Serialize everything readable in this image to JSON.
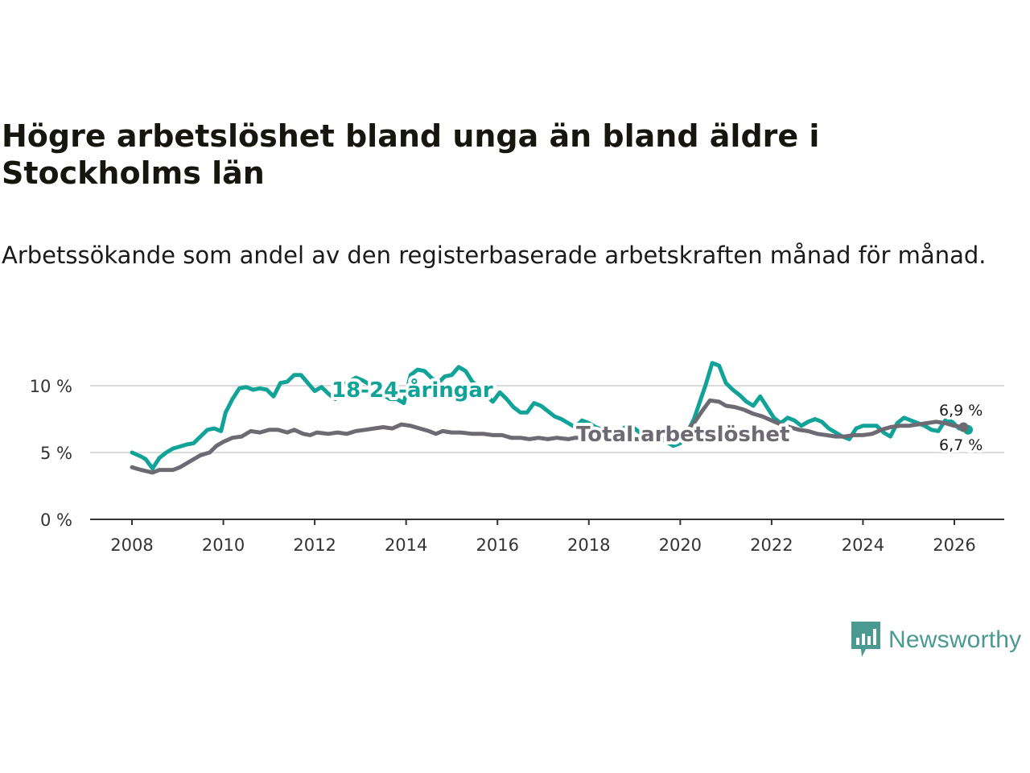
{
  "title": "Högre arbetslöshet bland unga än bland äldre i Stockholms län",
  "subtitle": "Arbetssökande som andel av den registerbaserade arbetskraften månad för månad.",
  "brand": {
    "name": "Newsworthy",
    "color": "#4a9a91",
    "icon": "bar-chart-speech-bubble-icon"
  },
  "chart_data": {
    "type": "line",
    "title": "Högre arbetslöshet bland unga än bland äldre i Stockholms län",
    "subtitle": "Arbetssökande som andel av den registerbaserade arbetskraften månad för månad.",
    "xlabel": "",
    "ylabel": "",
    "xlim": [
      2007.7,
      2027.1
    ],
    "ylim": [
      0,
      12
    ],
    "x_ticks": [
      2008,
      2010,
      2012,
      2014,
      2016,
      2018,
      2020,
      2022,
      2024,
      2026
    ],
    "x_tick_labels": [
      "2008",
      "2010",
      "2012",
      "2014",
      "2016",
      "2018",
      "2020",
      "2022",
      "2024",
      "2026"
    ],
    "y_ticks": [
      0,
      5,
      10
    ],
    "y_tick_labels": [
      "0 %",
      "5 %",
      "10 %"
    ],
    "grid": true,
    "series": [
      {
        "name": "18-24-åringar",
        "label": "18-24-åringar",
        "color": "#12a398",
        "end_label": "6,7 %",
        "points": [
          [
            2008.0,
            5.0
          ],
          [
            2008.2,
            4.7
          ],
          [
            2008.3,
            4.5
          ],
          [
            2008.45,
            3.8
          ],
          [
            2008.6,
            4.6
          ],
          [
            2008.75,
            5.0
          ],
          [
            2008.9,
            5.3
          ],
          [
            2009.0,
            5.4
          ],
          [
            2009.2,
            5.6
          ],
          [
            2009.35,
            5.7
          ],
          [
            2009.5,
            6.2
          ],
          [
            2009.65,
            6.7
          ],
          [
            2009.8,
            6.8
          ],
          [
            2009.95,
            6.6
          ],
          [
            2010.05,
            8.0
          ],
          [
            2010.2,
            9.0
          ],
          [
            2010.35,
            9.8
          ],
          [
            2010.5,
            9.9
          ],
          [
            2010.65,
            9.7
          ],
          [
            2010.8,
            9.8
          ],
          [
            2010.95,
            9.7
          ],
          [
            2011.1,
            9.2
          ],
          [
            2011.25,
            10.2
          ],
          [
            2011.4,
            10.3
          ],
          [
            2011.55,
            10.8
          ],
          [
            2011.7,
            10.8
          ],
          [
            2011.85,
            10.2
          ],
          [
            2012.0,
            9.6
          ],
          [
            2012.15,
            9.9
          ],
          [
            2012.3,
            9.4
          ],
          [
            2012.45,
            9.0
          ],
          [
            2012.6,
            10.0
          ],
          [
            2012.75,
            10.3
          ],
          [
            2012.9,
            10.6
          ],
          [
            2013.05,
            10.4
          ],
          [
            2013.2,
            10.1
          ],
          [
            2013.35,
            9.8
          ],
          [
            2013.5,
            9.3
          ],
          [
            2013.65,
            9.0
          ],
          [
            2013.8,
            9.0
          ],
          [
            2013.95,
            8.7
          ],
          [
            2014.1,
            10.8
          ],
          [
            2014.25,
            11.2
          ],
          [
            2014.4,
            11.1
          ],
          [
            2014.55,
            10.6
          ],
          [
            2014.7,
            10.2
          ],
          [
            2014.85,
            10.7
          ],
          [
            2015.0,
            10.8
          ],
          [
            2015.15,
            11.4
          ],
          [
            2015.3,
            11.1
          ],
          [
            2015.45,
            10.3
          ],
          [
            2015.6,
            9.9
          ],
          [
            2015.75,
            9.3
          ],
          [
            2015.9,
            8.8
          ],
          [
            2016.05,
            9.5
          ],
          [
            2016.2,
            9.0
          ],
          [
            2016.35,
            8.4
          ],
          [
            2016.5,
            8.0
          ],
          [
            2016.65,
            8.0
          ],
          [
            2016.8,
            8.7
          ],
          [
            2016.95,
            8.5
          ],
          [
            2017.1,
            8.1
          ],
          [
            2017.25,
            7.7
          ],
          [
            2017.4,
            7.5
          ],
          [
            2017.55,
            7.2
          ],
          [
            2017.7,
            6.9
          ],
          [
            2017.85,
            7.4
          ],
          [
            2018.0,
            7.2
          ],
          [
            2018.15,
            6.9
          ],
          [
            2018.3,
            6.7
          ],
          [
            2018.45,
            6.7
          ],
          [
            2018.55,
            6.4
          ],
          [
            2018.7,
            6.7
          ],
          [
            2018.85,
            7.0
          ],
          [
            2019.0,
            6.8
          ],
          [
            2019.15,
            6.4
          ],
          [
            2019.3,
            6.6
          ],
          [
            2019.45,
            6.3
          ],
          [
            2019.6,
            6.0
          ],
          [
            2019.7,
            5.8
          ],
          [
            2019.85,
            5.5
          ],
          [
            2020.0,
            5.7
          ],
          [
            2020.15,
            6.5
          ],
          [
            2020.3,
            7.5
          ],
          [
            2020.45,
            9.0
          ],
          [
            2020.55,
            10.0
          ],
          [
            2020.7,
            11.7
          ],
          [
            2020.85,
            11.5
          ],
          [
            2021.0,
            10.2
          ],
          [
            2021.15,
            9.7
          ],
          [
            2021.3,
            9.3
          ],
          [
            2021.45,
            8.8
          ],
          [
            2021.6,
            8.5
          ],
          [
            2021.75,
            9.2
          ],
          [
            2021.9,
            8.4
          ],
          [
            2022.05,
            7.6
          ],
          [
            2022.2,
            7.2
          ],
          [
            2022.35,
            7.6
          ],
          [
            2022.5,
            7.4
          ],
          [
            2022.65,
            7.0
          ],
          [
            2022.8,
            7.3
          ],
          [
            2022.95,
            7.5
          ],
          [
            2023.1,
            7.3
          ],
          [
            2023.25,
            6.8
          ],
          [
            2023.4,
            6.5
          ],
          [
            2023.55,
            6.2
          ],
          [
            2023.7,
            6.0
          ],
          [
            2023.85,
            6.8
          ],
          [
            2024.0,
            7.0
          ],
          [
            2024.15,
            7.0
          ],
          [
            2024.3,
            7.0
          ],
          [
            2024.45,
            6.5
          ],
          [
            2024.6,
            6.2
          ],
          [
            2024.75,
            7.2
          ],
          [
            2024.9,
            7.6
          ],
          [
            2025.05,
            7.4
          ],
          [
            2025.2,
            7.2
          ],
          [
            2025.35,
            7.0
          ],
          [
            2025.5,
            6.7
          ],
          [
            2025.65,
            6.6
          ],
          [
            2025.8,
            7.4
          ],
          [
            2025.95,
            7.3
          ],
          [
            2026.1,
            6.8
          ],
          [
            2026.2,
            6.8
          ],
          [
            2026.3,
            6.7
          ]
        ]
      },
      {
        "name": "Total arbetslöshet",
        "label": "Total arbetslöshet",
        "color": "#6e6a73",
        "end_label": "6,9 %",
        "points": [
          [
            2008.0,
            3.9
          ],
          [
            2008.2,
            3.7
          ],
          [
            2008.45,
            3.5
          ],
          [
            2008.6,
            3.7
          ],
          [
            2008.9,
            3.7
          ],
          [
            2009.05,
            3.9
          ],
          [
            2009.3,
            4.4
          ],
          [
            2009.5,
            4.8
          ],
          [
            2009.7,
            5.0
          ],
          [
            2009.85,
            5.5
          ],
          [
            2010.0,
            5.8
          ],
          [
            2010.2,
            6.1
          ],
          [
            2010.4,
            6.2
          ],
          [
            2010.6,
            6.6
          ],
          [
            2010.8,
            6.5
          ],
          [
            2011.0,
            6.7
          ],
          [
            2011.2,
            6.7
          ],
          [
            2011.4,
            6.5
          ],
          [
            2011.55,
            6.7
          ],
          [
            2011.75,
            6.4
          ],
          [
            2011.9,
            6.3
          ],
          [
            2012.05,
            6.5
          ],
          [
            2012.3,
            6.4
          ],
          [
            2012.5,
            6.5
          ],
          [
            2012.7,
            6.4
          ],
          [
            2012.9,
            6.6
          ],
          [
            2013.1,
            6.7
          ],
          [
            2013.3,
            6.8
          ],
          [
            2013.5,
            6.9
          ],
          [
            2013.7,
            6.8
          ],
          [
            2013.9,
            7.1
          ],
          [
            2014.1,
            7.0
          ],
          [
            2014.3,
            6.8
          ],
          [
            2014.5,
            6.6
          ],
          [
            2014.65,
            6.4
          ],
          [
            2014.8,
            6.6
          ],
          [
            2015.0,
            6.5
          ],
          [
            2015.2,
            6.5
          ],
          [
            2015.45,
            6.4
          ],
          [
            2015.7,
            6.4
          ],
          [
            2015.9,
            6.3
          ],
          [
            2016.1,
            6.3
          ],
          [
            2016.3,
            6.1
          ],
          [
            2016.5,
            6.1
          ],
          [
            2016.7,
            6.0
          ],
          [
            2016.9,
            6.1
          ],
          [
            2017.1,
            6.0
          ],
          [
            2017.3,
            6.1
          ],
          [
            2017.55,
            6.0
          ],
          [
            2017.7,
            6.1
          ],
          [
            2017.9,
            6.1
          ],
          [
            2018.1,
            6.2
          ],
          [
            2018.3,
            6.1
          ],
          [
            2018.5,
            6.0
          ],
          [
            2018.7,
            6.1
          ],
          [
            2018.9,
            6.0
          ],
          [
            2019.1,
            6.0
          ],
          [
            2019.3,
            6.0
          ],
          [
            2019.5,
            5.9
          ],
          [
            2019.7,
            6.1
          ],
          [
            2019.9,
            6.3
          ],
          [
            2020.1,
            6.5
          ],
          [
            2020.3,
            7.2
          ],
          [
            2020.5,
            8.2
          ],
          [
            2020.65,
            8.9
          ],
          [
            2020.85,
            8.8
          ],
          [
            2021.0,
            8.5
          ],
          [
            2021.2,
            8.4
          ],
          [
            2021.4,
            8.2
          ],
          [
            2021.6,
            7.9
          ],
          [
            2021.8,
            7.7
          ],
          [
            2022.0,
            7.4
          ],
          [
            2022.2,
            7.1
          ],
          [
            2022.4,
            6.9
          ],
          [
            2022.6,
            6.7
          ],
          [
            2022.8,
            6.6
          ],
          [
            2023.0,
            6.4
          ],
          [
            2023.2,
            6.3
          ],
          [
            2023.4,
            6.2
          ],
          [
            2023.6,
            6.2
          ],
          [
            2023.8,
            6.3
          ],
          [
            2024.0,
            6.3
          ],
          [
            2024.2,
            6.4
          ],
          [
            2024.4,
            6.7
          ],
          [
            2024.6,
            6.9
          ],
          [
            2024.8,
            7.0
          ],
          [
            2025.0,
            7.0
          ],
          [
            2025.2,
            7.1
          ],
          [
            2025.4,
            7.2
          ],
          [
            2025.6,
            7.3
          ],
          [
            2025.8,
            7.2
          ],
          [
            2026.0,
            7.0
          ],
          [
            2026.2,
            6.9
          ]
        ]
      }
    ]
  }
}
